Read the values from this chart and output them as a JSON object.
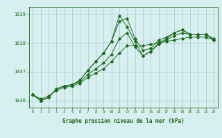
{
  "title": "Graphe pression niveau de la mer (hPa)",
  "xlabel_hours": [
    0,
    1,
    2,
    3,
    4,
    5,
    6,
    7,
    8,
    9,
    10,
    11,
    12,
    13,
    14,
    15,
    16,
    17,
    18,
    19,
    20,
    21,
    22,
    23
  ],
  "line1": [
    1036.2,
    1036.0,
    1036.1,
    1036.4,
    1036.5,
    1036.55,
    1036.7,
    1037.05,
    1037.35,
    1037.65,
    1038.05,
    1038.75,
    1038.85,
    1038.15,
    1037.75,
    1037.8,
    1038.1,
    1038.2,
    1038.35,
    1038.45,
    1038.3,
    1038.3,
    1038.3,
    1038.15
  ],
  "line2": [
    1036.2,
    1036.0,
    1036.1,
    1036.4,
    1036.5,
    1036.55,
    1036.7,
    1037.05,
    1037.35,
    1037.65,
    1038.05,
    1038.95,
    1038.55,
    1038.05,
    1037.55,
    1037.7,
    1038.0,
    1038.15,
    1038.35,
    1038.45,
    1038.3,
    1038.3,
    1038.3,
    1038.1
  ],
  "line3": [
    1036.2,
    1036.0,
    1036.1,
    1036.4,
    1036.5,
    1036.55,
    1036.65,
    1036.9,
    1037.1,
    1037.3,
    1037.6,
    1038.15,
    1038.35,
    1037.85,
    1037.55,
    1037.7,
    1037.95,
    1038.1,
    1038.25,
    1038.35,
    1038.3,
    1038.3,
    1038.3,
    1038.1
  ],
  "line4": [
    1036.2,
    1036.05,
    1036.15,
    1036.35,
    1036.45,
    1036.5,
    1036.6,
    1036.8,
    1036.95,
    1037.1,
    1037.35,
    1037.65,
    1037.9,
    1037.9,
    1037.9,
    1037.95,
    1038.0,
    1038.05,
    1038.1,
    1038.15,
    1038.2,
    1038.2,
    1038.2,
    1038.1
  ],
  "line_color": "#1a6b1a",
  "bg_color": "#d8eff0",
  "grid_color": "#a0c8d0",
  "ylim": [
    1035.75,
    1039.25
  ],
  "yticks": [
    1036,
    1037,
    1038,
    1039
  ],
  "xlim": [
    -0.5,
    23.5
  ]
}
